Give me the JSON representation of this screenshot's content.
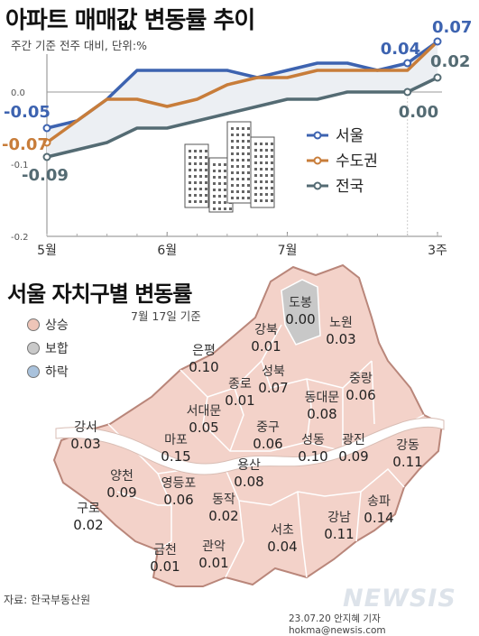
{
  "chart": {
    "title": "아파트 매매값 변동률 추이",
    "subtitle": "주간 기준 전주 대비, 단위:%"
  },
  "chart_data": {
    "type": "line",
    "title": "아파트 매매값 변동률 추이",
    "subtitle": "주간 기준 전주 대비, 단위:%",
    "ylim": [
      -0.2,
      0.1
    ],
    "y_ticks": [
      "0.0",
      "-0.1",
      "-0.2"
    ],
    "x_labels": [
      "5월",
      "6월",
      "7월",
      "3주"
    ],
    "series": [
      {
        "name": "서울",
        "color": "#3d63b0",
        "values": [
          -0.05,
          -0.04,
          -0.01,
          0.03,
          0.03,
          0.03,
          0.03,
          0.02,
          0.03,
          0.04,
          0.04,
          0.03,
          0.04,
          0.07
        ],
        "end_labels": [
          "-0.05",
          "0.04",
          "0.07"
        ]
      },
      {
        "name": "수도권",
        "color": "#c87d3a",
        "values": [
          -0.07,
          -0.04,
          -0.01,
          -0.01,
          -0.02,
          -0.01,
          0.01,
          0.02,
          0.02,
          0.03,
          0.03,
          0.03,
          0.03,
          0.07
        ],
        "end_labels": [
          "-0.07"
        ]
      },
      {
        "name": "전국",
        "color": "#546b73",
        "values": [
          -0.09,
          -0.08,
          -0.07,
          -0.05,
          -0.05,
          -0.04,
          -0.03,
          -0.02,
          -0.01,
          -0.01,
          0.0,
          0.0,
          0.0,
          0.02
        ],
        "end_labels": [
          "-0.09",
          "0.00",
          "0.02"
        ]
      }
    ],
    "legend_position": "right"
  },
  "map": {
    "title": "서울 자치구별 변동률",
    "date": "7월 17일 기준",
    "legend": [
      {
        "label": "상승",
        "color": "#eec5b8"
      },
      {
        "label": "보합",
        "color": "#c9c9c9"
      },
      {
        "label": "하락",
        "color": "#a9c2dc"
      }
    ],
    "fill_rise": "#f3d2c9",
    "fill_flat": "#c8c8c8",
    "districts": [
      {
        "name": "도봉",
        "value": "0.00",
        "status": "보합"
      },
      {
        "name": "강북",
        "value": "0.01",
        "status": "상승"
      },
      {
        "name": "노원",
        "value": "0.03",
        "status": "상승"
      },
      {
        "name": "은평",
        "value": "0.10",
        "status": "상승"
      },
      {
        "name": "성북",
        "value": "0.07",
        "status": "상승"
      },
      {
        "name": "종로",
        "value": "0.01",
        "status": "상승"
      },
      {
        "name": "중랑",
        "value": "0.06",
        "status": "상승"
      },
      {
        "name": "동대문",
        "value": "0.08",
        "status": "상승"
      },
      {
        "name": "서대문",
        "value": "0.05",
        "status": "상승"
      },
      {
        "name": "중구",
        "value": "0.06",
        "status": "상승"
      },
      {
        "name": "강서",
        "value": "0.03",
        "status": "상승"
      },
      {
        "name": "마포",
        "value": "0.15",
        "status": "상승"
      },
      {
        "name": "성동",
        "value": "0.10",
        "status": "상승"
      },
      {
        "name": "광진",
        "value": "0.09",
        "status": "상승"
      },
      {
        "name": "강동",
        "value": "0.11",
        "status": "상승"
      },
      {
        "name": "용산",
        "value": "0.08",
        "status": "상승"
      },
      {
        "name": "양천",
        "value": "0.09",
        "status": "상승"
      },
      {
        "name": "영등포",
        "value": "0.06",
        "status": "상승"
      },
      {
        "name": "동작",
        "value": "0.02",
        "status": "상승"
      },
      {
        "name": "구로",
        "value": "0.02",
        "status": "상승"
      },
      {
        "name": "강남",
        "value": "0.11",
        "status": "상승"
      },
      {
        "name": "송파",
        "value": "0.14",
        "status": "상승"
      },
      {
        "name": "서초",
        "value": "0.04",
        "status": "상승"
      },
      {
        "name": "금천",
        "value": "0.01",
        "status": "상승"
      },
      {
        "name": "관악",
        "value": "0.01",
        "status": "상승"
      }
    ]
  },
  "footer": {
    "source": "자료: 한국부동산원",
    "credit": "23.07.20 안지혜 기자 hokma@newsis.com",
    "watermark": "NEWSIS"
  }
}
